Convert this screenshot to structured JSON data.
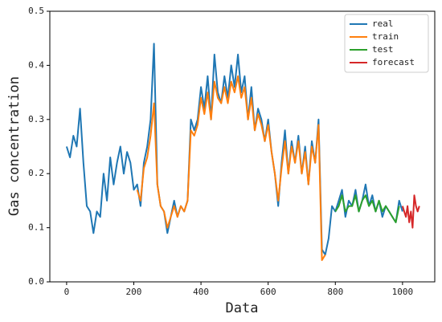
{
  "chart_data": {
    "type": "line",
    "xlabel": "Data",
    "ylabel": "Gas concentration",
    "xlim": [
      -50,
      1096
    ],
    "ylim": [
      0,
      0.5
    ],
    "xticks": [
      0,
      200,
      400,
      600,
      800,
      1000
    ],
    "yticks": [
      {
        "value": 0,
        "label": "0.0"
      },
      0.1,
      0.2,
      0.3,
      0.4,
      0.5
    ],
    "legend": "upper right",
    "series": [
      {
        "name": "real",
        "color": "#1f77b4",
        "x": [
          0,
          10,
          20,
          30,
          40,
          50,
          60,
          70,
          80,
          90,
          100,
          110,
          120,
          130,
          140,
          150,
          160,
          170,
          180,
          190,
          200,
          210,
          220,
          230,
          240,
          250,
          260,
          270,
          280,
          290,
          300,
          310,
          320,
          330,
          340,
          350,
          360,
          370,
          380,
          390,
          400,
          410,
          420,
          430,
          440,
          450,
          460,
          470,
          480,
          490,
          500,
          510,
          520,
          530,
          540,
          550,
          560,
          570,
          580,
          590,
          600,
          610,
          620,
          630,
          640,
          650,
          660,
          670,
          680,
          690,
          700,
          710,
          720,
          730,
          740,
          750,
          760,
          770,
          780,
          790,
          800,
          810,
          820,
          830,
          840,
          850,
          860,
          870,
          880,
          890,
          900,
          910,
          920,
          930,
          940,
          950,
          960,
          970,
          980,
          990,
          1000
        ],
        "values": [
          0.25,
          0.23,
          0.27,
          0.25,
          0.32,
          0.22,
          0.14,
          0.13,
          0.09,
          0.13,
          0.12,
          0.2,
          0.15,
          0.23,
          0.18,
          0.22,
          0.25,
          0.2,
          0.24,
          0.22,
          0.17,
          0.18,
          0.14,
          0.22,
          0.25,
          0.3,
          0.44,
          0.18,
          0.14,
          0.13,
          0.09,
          0.12,
          0.15,
          0.12,
          0.14,
          0.13,
          0.15,
          0.3,
          0.28,
          0.3,
          0.36,
          0.32,
          0.38,
          0.3,
          0.42,
          0.35,
          0.33,
          0.38,
          0.34,
          0.4,
          0.36,
          0.42,
          0.35,
          0.38,
          0.3,
          0.36,
          0.28,
          0.32,
          0.3,
          0.26,
          0.3,
          0.24,
          0.2,
          0.14,
          0.22,
          0.28,
          0.2,
          0.26,
          0.22,
          0.27,
          0.2,
          0.25,
          0.18,
          0.26,
          0.22,
          0.3,
          0.06,
          0.05,
          0.08,
          0.14,
          0.13,
          0.15,
          0.17,
          0.12,
          0.15,
          0.14,
          0.17,
          0.13,
          0.15,
          0.18,
          0.14,
          0.16,
          0.13,
          0.15,
          0.12,
          0.14,
          0.13,
          0.12,
          0.11,
          0.15,
          0.13
        ]
      },
      {
        "name": "train",
        "color": "#ff7f0e",
        "x": [
          210,
          220,
          230,
          240,
          250,
          260,
          270,
          280,
          290,
          300,
          310,
          320,
          330,
          340,
          350,
          360,
          370,
          380,
          390,
          400,
          410,
          420,
          430,
          440,
          450,
          460,
          470,
          480,
          490,
          500,
          510,
          520,
          530,
          540,
          550,
          560,
          570,
          580,
          590,
          600,
          610,
          620,
          630,
          640,
          650,
          660,
          670,
          680,
          690,
          700,
          710,
          720,
          730,
          740,
          750,
          760,
          770
        ],
        "values": [
          0.17,
          0.15,
          0.21,
          0.23,
          0.27,
          0.33,
          0.18,
          0.14,
          0.13,
          0.1,
          0.12,
          0.14,
          0.12,
          0.14,
          0.13,
          0.15,
          0.28,
          0.27,
          0.29,
          0.34,
          0.31,
          0.35,
          0.3,
          0.37,
          0.34,
          0.33,
          0.36,
          0.33,
          0.37,
          0.35,
          0.38,
          0.34,
          0.36,
          0.3,
          0.34,
          0.28,
          0.31,
          0.29,
          0.26,
          0.29,
          0.24,
          0.2,
          0.15,
          0.21,
          0.26,
          0.2,
          0.25,
          0.22,
          0.26,
          0.2,
          0.24,
          0.18,
          0.25,
          0.22,
          0.29,
          0.04,
          0.05
        ]
      },
      {
        "name": "test",
        "color": "#2ca02c",
        "x": [
          800,
          810,
          820,
          830,
          840,
          850,
          860,
          870,
          880,
          890,
          900,
          910,
          920,
          930,
          940,
          950,
          960,
          970,
          980,
          990
        ],
        "values": [
          0.13,
          0.14,
          0.16,
          0.13,
          0.14,
          0.14,
          0.16,
          0.13,
          0.15,
          0.16,
          0.14,
          0.15,
          0.13,
          0.15,
          0.13,
          0.14,
          0.13,
          0.12,
          0.11,
          0.14
        ]
      },
      {
        "name": "forecast",
        "color": "#d62728",
        "x": [
          1000,
          1005,
          1010,
          1015,
          1020,
          1025,
          1030,
          1035,
          1040,
          1045,
          1050
        ],
        "values": [
          0.14,
          0.13,
          0.12,
          0.14,
          0.11,
          0.13,
          0.1,
          0.16,
          0.14,
          0.13,
          0.14
        ]
      }
    ]
  }
}
